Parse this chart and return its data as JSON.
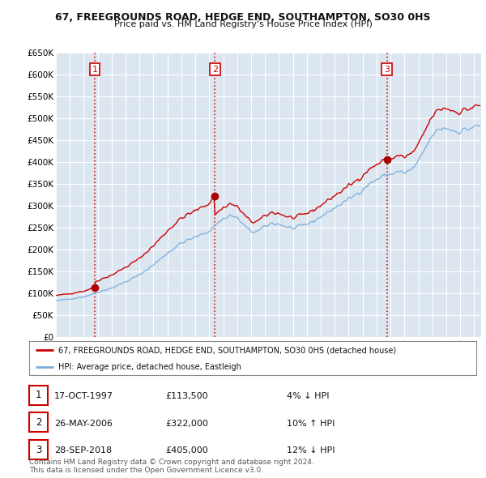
{
  "title": "67, FREEGROUNDS ROAD, HEDGE END, SOUTHAMPTON, SO30 0HS",
  "subtitle": "Price paid vs. HM Land Registry's House Price Index (HPI)",
  "title_fontsize": 9,
  "subtitle_fontsize": 8,
  "background_color": "#ffffff",
  "plot_bg_color": "#dce6f0",
  "grid_color": "#ffffff",
  "ylabel_ticks": [
    "£0",
    "£50K",
    "£100K",
    "£150K",
    "£200K",
    "£250K",
    "£300K",
    "£350K",
    "£400K",
    "£450K",
    "£500K",
    "£550K",
    "£600K",
    "£650K"
  ],
  "ytick_values": [
    0,
    50000,
    100000,
    150000,
    200000,
    250000,
    300000,
    350000,
    400000,
    450000,
    500000,
    550000,
    600000,
    650000
  ],
  "xlim_start": 1995.0,
  "xlim_end": 2025.5,
  "ylim_min": 0,
  "ylim_max": 650000,
  "sale_dates": [
    1997.79,
    2006.4,
    2018.74
  ],
  "sale_prices": [
    113500,
    322000,
    405000
  ],
  "sale_labels": [
    "1",
    "2",
    "3"
  ],
  "vline_color": "#cc0000",
  "sale_marker_color": "#aa0000",
  "red_line_color": "#cc0000",
  "blue_line_color": "#7aaddc",
  "legend_red_label": "67, FREEGROUNDS ROAD, HEDGE END, SOUTHAMPTON, SO30 0HS (detached house)",
  "legend_blue_label": "HPI: Average price, detached house, Eastleigh",
  "table_entries": [
    {
      "num": "1",
      "date": "17-OCT-1997",
      "price": "£113,500",
      "hpi": "4% ↓ HPI"
    },
    {
      "num": "2",
      "date": "26-MAY-2006",
      "price": "£322,000",
      "hpi": "10% ↑ HPI"
    },
    {
      "num": "3",
      "date": "28-SEP-2018",
      "price": "£405,000",
      "hpi": "12% ↓ HPI"
    }
  ],
  "footnote": "Contains HM Land Registry data © Crown copyright and database right 2024.\nThis data is licensed under the Open Government Licence v3.0."
}
